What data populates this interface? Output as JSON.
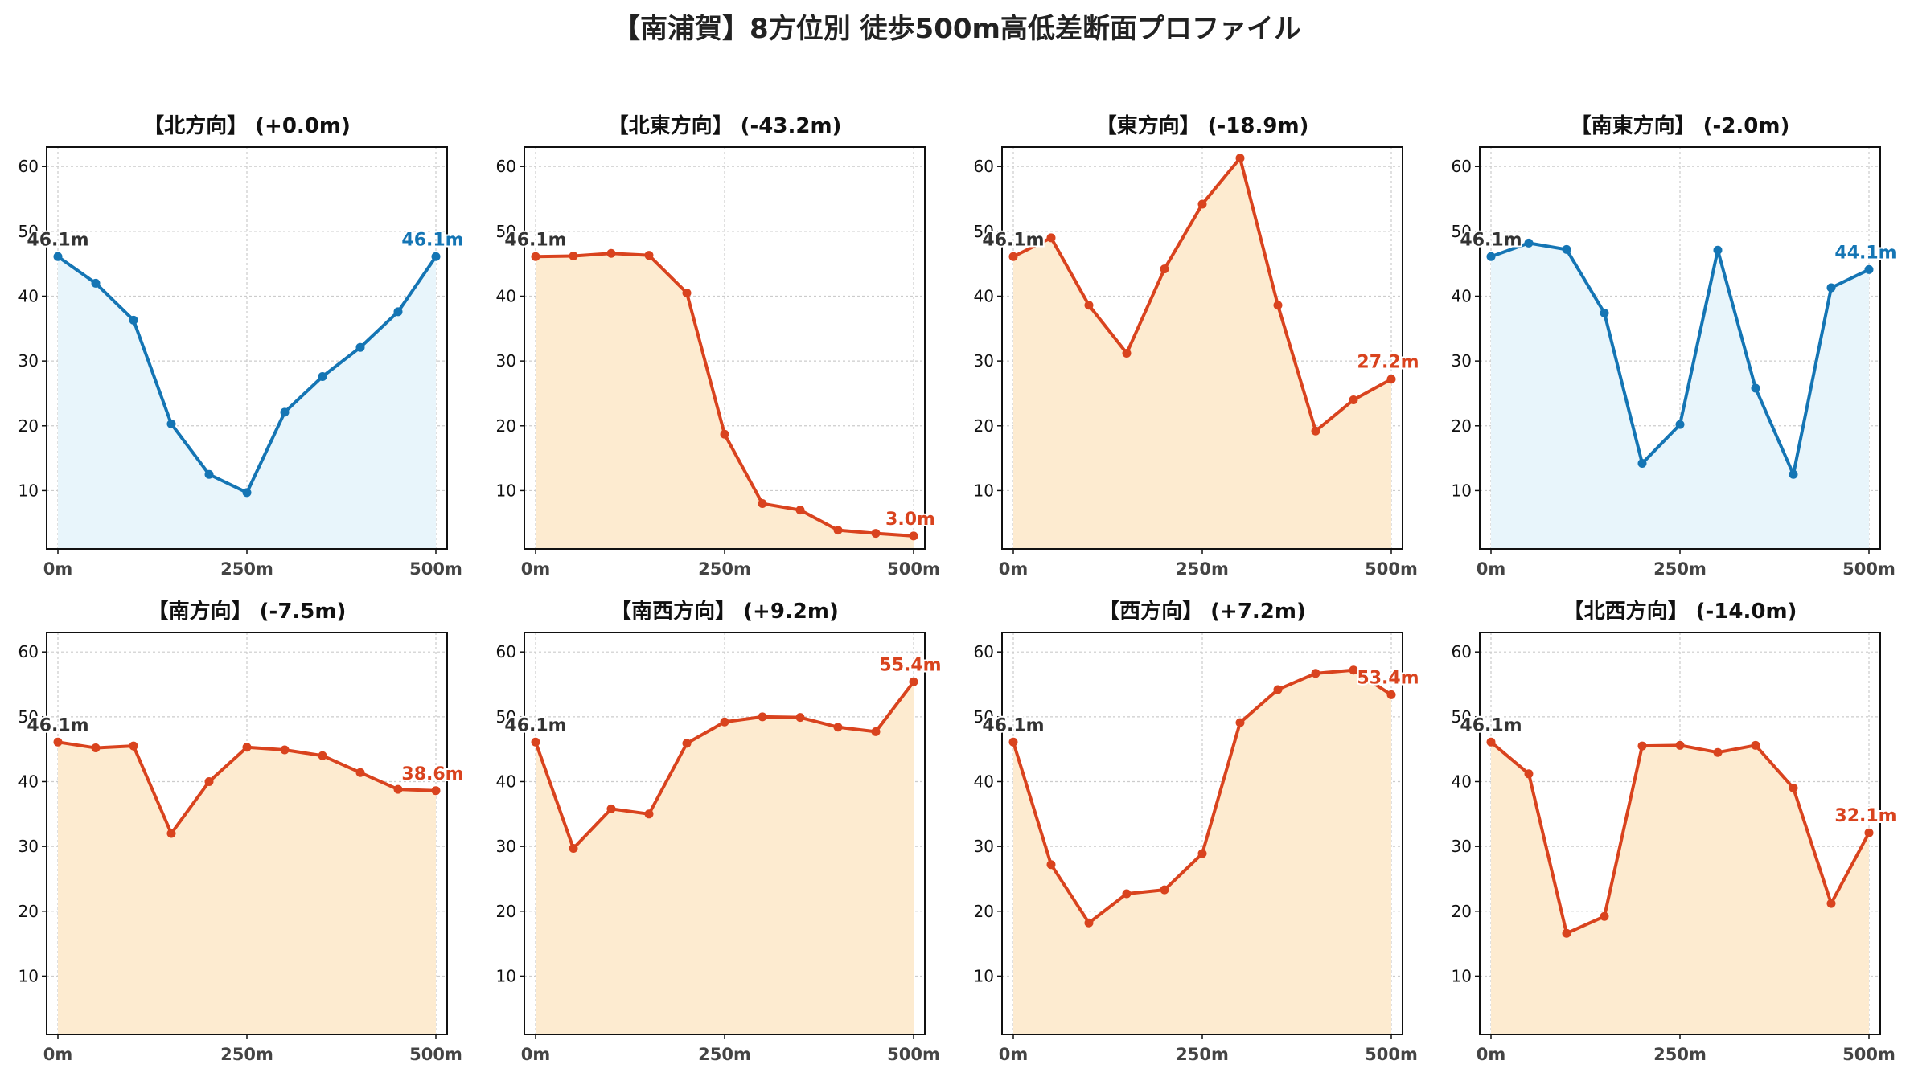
{
  "title": "【南浦賀】8方位別 徒歩500m高低差断面プロファイル",
  "colors": {
    "blue_line": "#1475b4",
    "blue_fill": "#e8f5fb",
    "orange_line": "#d9431e",
    "orange_fill": "#fdebd0",
    "start_label": "#333333"
  },
  "chart_data": [
    {
      "type": "area",
      "title": "【北方向】 (+0.0m)",
      "color": "blue",
      "x": [
        0,
        50,
        100,
        150,
        200,
        250,
        300,
        350,
        400,
        450,
        500
      ],
      "y": [
        46.1,
        42.0,
        36.3,
        20.3,
        12.5,
        9.7,
        22.1,
        27.6,
        32.1,
        37.6,
        46.1
      ],
      "start_label": "46.1m",
      "end_label": "46.1m",
      "xticks": [
        "0m",
        "250m",
        "500m"
      ],
      "yticks": [
        10,
        20,
        30,
        40,
        50,
        60
      ],
      "ylim": [
        1,
        63
      ],
      "grid": true
    },
    {
      "type": "area",
      "title": "【北東方向】 (-43.2m)",
      "color": "orange",
      "x": [
        0,
        50,
        100,
        150,
        200,
        250,
        300,
        350,
        400,
        450,
        500
      ],
      "y": [
        46.1,
        46.2,
        46.6,
        46.3,
        40.5,
        18.7,
        8.0,
        7.0,
        3.9,
        3.4,
        3.0
      ],
      "start_label": "46.1m",
      "end_label": "3.0m",
      "xticks": [
        "0m",
        "250m",
        "500m"
      ],
      "yticks": [
        10,
        20,
        30,
        40,
        50,
        60
      ],
      "ylim": [
        1,
        63
      ],
      "grid": true
    },
    {
      "type": "area",
      "title": "【東方向】 (-18.9m)",
      "color": "orange",
      "x": [
        0,
        50,
        100,
        150,
        200,
        250,
        300,
        350,
        400,
        450,
        500
      ],
      "y": [
        46.1,
        49.0,
        38.6,
        31.2,
        44.2,
        54.2,
        61.3,
        38.6,
        19.2,
        24.0,
        27.2
      ],
      "start_label": "46.1m",
      "end_label": "27.2m",
      "xticks": [
        "0m",
        "250m",
        "500m"
      ],
      "yticks": [
        10,
        20,
        30,
        40,
        50,
        60
      ],
      "ylim": [
        1,
        63
      ],
      "grid": true
    },
    {
      "type": "area",
      "title": "【南東方向】 (-2.0m)",
      "color": "blue",
      "x": [
        0,
        50,
        100,
        150,
        200,
        250,
        300,
        350,
        400,
        450,
        500
      ],
      "y": [
        46.1,
        48.2,
        47.2,
        37.4,
        14.2,
        20.2,
        47.1,
        25.8,
        12.5,
        41.3,
        44.1
      ],
      "start_label": "46.1m",
      "end_label": "44.1m",
      "xticks": [
        "0m",
        "250m",
        "500m"
      ],
      "yticks": [
        10,
        20,
        30,
        40,
        50,
        60
      ],
      "ylim": [
        1,
        63
      ],
      "grid": true
    },
    {
      "type": "area",
      "title": "【南方向】 (-7.5m)",
      "color": "orange",
      "x": [
        0,
        50,
        100,
        150,
        200,
        250,
        300,
        350,
        400,
        450,
        500
      ],
      "y": [
        46.1,
        45.2,
        45.5,
        32.0,
        40.0,
        45.3,
        44.9,
        44.0,
        41.4,
        38.8,
        38.6
      ],
      "start_label": "46.1m",
      "end_label": "38.6m",
      "xticks": [
        "0m",
        "250m",
        "500m"
      ],
      "yticks": [
        10,
        20,
        30,
        40,
        50,
        60
      ],
      "ylim": [
        1,
        63
      ],
      "grid": true
    },
    {
      "type": "area",
      "title": "【南西方向】 (+9.2m)",
      "color": "orange",
      "x": [
        0,
        50,
        100,
        150,
        200,
        250,
        300,
        350,
        400,
        450,
        500
      ],
      "y": [
        46.1,
        29.7,
        35.8,
        35.0,
        45.9,
        49.2,
        50.0,
        49.9,
        48.4,
        47.7,
        55.4
      ],
      "start_label": "46.1m",
      "end_label": "55.4m",
      "xticks": [
        "0m",
        "250m",
        "500m"
      ],
      "yticks": [
        10,
        20,
        30,
        40,
        50,
        60
      ],
      "ylim": [
        1,
        63
      ],
      "grid": true
    },
    {
      "type": "area",
      "title": "【西方向】 (+7.2m)",
      "color": "orange",
      "x": [
        0,
        50,
        100,
        150,
        200,
        250,
        300,
        350,
        400,
        450,
        500
      ],
      "y": [
        46.1,
        27.2,
        18.2,
        22.7,
        23.3,
        28.9,
        49.1,
        54.2,
        56.7,
        57.2,
        53.4
      ],
      "start_label": "46.1m",
      "end_label": "53.4m",
      "xticks": [
        "0m",
        "250m",
        "500m"
      ],
      "yticks": [
        10,
        20,
        30,
        40,
        50,
        60
      ],
      "ylim": [
        1,
        63
      ],
      "grid": true
    },
    {
      "type": "area",
      "title": "【北西方向】 (-14.0m)",
      "color": "orange",
      "x": [
        0,
        50,
        100,
        150,
        200,
        250,
        300,
        350,
        400,
        450,
        500
      ],
      "y": [
        46.1,
        41.2,
        16.6,
        19.2,
        45.5,
        45.6,
        44.5,
        45.6,
        39.0,
        21.2,
        32.1
      ],
      "start_label": "46.1m",
      "end_label": "32.1m",
      "xticks": [
        "0m",
        "250m",
        "500m"
      ],
      "yticks": [
        10,
        20,
        30,
        40,
        50,
        60
      ],
      "ylim": [
        1,
        63
      ],
      "grid": true
    }
  ]
}
